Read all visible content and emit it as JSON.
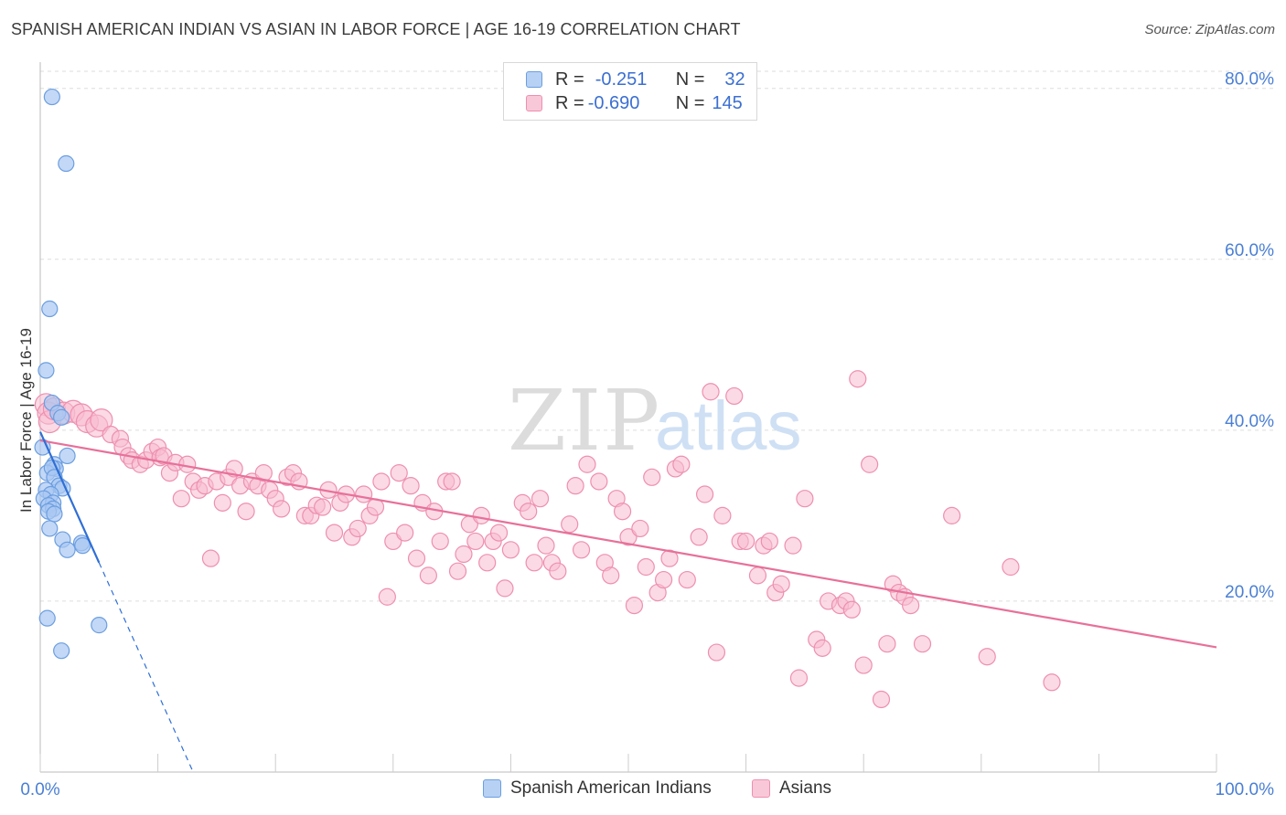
{
  "title": "SPANISH AMERICAN INDIAN VS ASIAN IN LABOR FORCE | AGE 16-19 CORRELATION CHART",
  "source": "Source: ZipAtlas.com",
  "watermark": {
    "zip": "ZIP",
    "atlas": "atlas"
  },
  "legend": {
    "row1": {
      "r_label": "R =",
      "r_value": "-0.251",
      "n_label": "N =",
      "n_value": "32"
    },
    "row2": {
      "r_label": "R =",
      "r_value": "-0.690",
      "n_label": "N =",
      "n_value": "145"
    }
  },
  "bottom_legend": {
    "series1": "Spanish American Indians",
    "series2": "Asians"
  },
  "colors": {
    "blue_fill": "#a9c8f2",
    "blue_stroke": "#6b9ee0",
    "blue_line": "#2f6fd6",
    "pink_fill": "#f7bcd0",
    "pink_stroke": "#ee8fb0",
    "pink_line": "#e8709a",
    "axis_text": "#4a7fd4",
    "grid": "#dddddd"
  },
  "chart_data": {
    "type": "scatter",
    "title": "SPANISH AMERICAN INDIAN VS ASIAN IN LABOR FORCE | AGE 16-19 CORRELATION CHART",
    "xlabel": "",
    "ylabel": "In Labor Force | Age 16-19",
    "xlim": [
      0,
      100
    ],
    "ylim": [
      0,
      82
    ],
    "x_tick_labels": [
      "0.0%",
      "100.0%"
    ],
    "y_ticks": [
      20,
      40,
      60,
      80
    ],
    "y_tick_labels": [
      "20.0%",
      "40.0%",
      "60.0%",
      "80.0%"
    ],
    "grid": true,
    "legend_position": "top-center",
    "series": [
      {
        "name": "Spanish American Indians",
        "r": -0.251,
        "n": 32,
        "trend": {
          "x0": 0,
          "y0": 39.8,
          "x1": 5.0,
          "y1": 24.5,
          "dashed_to_x": 13.0,
          "dashed_to_y": 0
        },
        "points": [
          [
            1.0,
            79.0
          ],
          [
            2.2,
            71.2
          ],
          [
            0.8,
            54.2
          ],
          [
            0.5,
            47.0
          ],
          [
            1.0,
            43.2
          ],
          [
            1.5,
            42.0
          ],
          [
            1.8,
            41.5
          ],
          [
            0.2,
            38.0
          ],
          [
            2.3,
            37.0
          ],
          [
            1.2,
            36.0
          ],
          [
            1.3,
            35.5
          ],
          [
            0.6,
            35.0
          ],
          [
            1.0,
            35.6
          ],
          [
            1.2,
            34.5
          ],
          [
            1.6,
            33.5
          ],
          [
            0.5,
            33.0
          ],
          [
            1.9,
            33.2
          ],
          [
            0.9,
            32.5
          ],
          [
            0.3,
            32.0
          ],
          [
            1.1,
            31.5
          ],
          [
            0.7,
            31.2
          ],
          [
            1.1,
            30.8
          ],
          [
            0.7,
            30.5
          ],
          [
            1.2,
            30.2
          ],
          [
            0.8,
            28.5
          ],
          [
            1.9,
            27.2
          ],
          [
            2.3,
            26.0
          ],
          [
            3.5,
            26.8
          ],
          [
            3.6,
            26.5
          ],
          [
            0.6,
            18.0
          ],
          [
            5.0,
            17.2
          ],
          [
            1.8,
            14.2
          ]
        ]
      },
      {
        "name": "Asians",
        "r": -0.69,
        "n": 145,
        "trend": {
          "x0": 0,
          "y0": 38.8,
          "x1": 100,
          "y1": 14.6
        },
        "points": [
          [
            0.5,
            43.0
          ],
          [
            0.7,
            42.0
          ],
          [
            0.8,
            41.0
          ],
          [
            1.2,
            42.5
          ],
          [
            2.0,
            42.0
          ],
          [
            2.8,
            42.2
          ],
          [
            3.5,
            41.8
          ],
          [
            4.0,
            41.0
          ],
          [
            4.8,
            40.5
          ],
          [
            5.2,
            41.2
          ],
          [
            6.0,
            39.5
          ],
          [
            6.8,
            39.0
          ],
          [
            7.0,
            38.0
          ],
          [
            7.5,
            37.0
          ],
          [
            7.8,
            36.5
          ],
          [
            8.5,
            36.0
          ],
          [
            9.0,
            36.5
          ],
          [
            9.5,
            37.5
          ],
          [
            10.0,
            38.0
          ],
          [
            10.2,
            36.8
          ],
          [
            10.5,
            37.0
          ],
          [
            11.0,
            35.0
          ],
          [
            11.5,
            36.2
          ],
          [
            12.0,
            32.0
          ],
          [
            12.5,
            36.0
          ],
          [
            13.0,
            34.0
          ],
          [
            13.5,
            33.0
          ],
          [
            14.0,
            33.5
          ],
          [
            14.5,
            25.0
          ],
          [
            15.0,
            34.0
          ],
          [
            15.5,
            31.5
          ],
          [
            16.0,
            34.5
          ],
          [
            16.5,
            35.5
          ],
          [
            17.0,
            33.5
          ],
          [
            17.5,
            30.5
          ],
          [
            18.0,
            34.0
          ],
          [
            18.5,
            33.5
          ],
          [
            19.0,
            35.0
          ],
          [
            19.5,
            33.0
          ],
          [
            20.0,
            32.0
          ],
          [
            20.5,
            30.8
          ],
          [
            21.0,
            34.5
          ],
          [
            21.5,
            35.0
          ],
          [
            22.0,
            34.0
          ],
          [
            22.5,
            30.0
          ],
          [
            23.0,
            30.0
          ],
          [
            23.5,
            31.2
          ],
          [
            24.0,
            31.0
          ],
          [
            24.5,
            33.0
          ],
          [
            25.0,
            28.0
          ],
          [
            25.5,
            31.5
          ],
          [
            26.0,
            32.5
          ],
          [
            26.5,
            27.5
          ],
          [
            27.0,
            28.5
          ],
          [
            27.5,
            32.5
          ],
          [
            28.0,
            30.0
          ],
          [
            28.5,
            31.0
          ],
          [
            29.0,
            34.0
          ],
          [
            29.5,
            20.5
          ],
          [
            30.0,
            27.0
          ],
          [
            30.5,
            35.0
          ],
          [
            31.0,
            28.0
          ],
          [
            31.5,
            33.5
          ],
          [
            32.0,
            25.0
          ],
          [
            32.5,
            31.5
          ],
          [
            33.0,
            23.0
          ],
          [
            33.5,
            30.5
          ],
          [
            34.0,
            27.0
          ],
          [
            34.5,
            34.0
          ],
          [
            35.0,
            34.0
          ],
          [
            35.5,
            23.5
          ],
          [
            36.0,
            25.5
          ],
          [
            36.5,
            29.0
          ],
          [
            37.0,
            27.0
          ],
          [
            37.5,
            30.0
          ],
          [
            38.0,
            24.5
          ],
          [
            38.5,
            27.0
          ],
          [
            39.0,
            28.0
          ],
          [
            39.5,
            21.5
          ],
          [
            40.0,
            26.0
          ],
          [
            41.0,
            31.5
          ],
          [
            41.5,
            30.5
          ],
          [
            42.0,
            24.5
          ],
          [
            42.5,
            32.0
          ],
          [
            43.0,
            26.5
          ],
          [
            43.5,
            24.5
          ],
          [
            44.0,
            23.5
          ],
          [
            45.0,
            29.0
          ],
          [
            45.5,
            33.5
          ],
          [
            46.0,
            26.0
          ],
          [
            46.5,
            36.0
          ],
          [
            47.5,
            34.0
          ],
          [
            48.0,
            24.5
          ],
          [
            48.5,
            23.0
          ],
          [
            49.0,
            32.0
          ],
          [
            49.5,
            30.5
          ],
          [
            50.0,
            27.5
          ],
          [
            50.5,
            19.5
          ],
          [
            51.0,
            28.5
          ],
          [
            51.5,
            24.0
          ],
          [
            52.0,
            34.5
          ],
          [
            52.5,
            21.0
          ],
          [
            53.0,
            22.5
          ],
          [
            53.5,
            25.0
          ],
          [
            54.0,
            35.5
          ],
          [
            54.5,
            36.0
          ],
          [
            55.0,
            22.5
          ],
          [
            56.0,
            27.5
          ],
          [
            56.5,
            32.5
          ],
          [
            57.0,
            44.5
          ],
          [
            57.5,
            14.0
          ],
          [
            58.0,
            30.0
          ],
          [
            59.0,
            44.0
          ],
          [
            59.5,
            27.0
          ],
          [
            60.0,
            27.0
          ],
          [
            61.0,
            23.0
          ],
          [
            61.5,
            26.5
          ],
          [
            62.0,
            27.0
          ],
          [
            62.5,
            21.0
          ],
          [
            63.0,
            22.0
          ],
          [
            64.0,
            26.5
          ],
          [
            64.5,
            11.0
          ],
          [
            65.0,
            32.0
          ],
          [
            66.0,
            15.5
          ],
          [
            66.5,
            14.5
          ],
          [
            67.0,
            20.0
          ],
          [
            68.0,
            19.5
          ],
          [
            68.5,
            20.0
          ],
          [
            69.0,
            19.0
          ],
          [
            69.5,
            46.0
          ],
          [
            70.0,
            12.5
          ],
          [
            70.5,
            36.0
          ],
          [
            71.5,
            8.5
          ],
          [
            72.0,
            15.0
          ],
          [
            72.5,
            22.0
          ],
          [
            73.0,
            21.0
          ],
          [
            73.5,
            20.5
          ],
          [
            74.0,
            19.5
          ],
          [
            75.0,
            15.0
          ],
          [
            77.5,
            30.0
          ],
          [
            80.5,
            13.5
          ],
          [
            82.5,
            24.0
          ],
          [
            86.0,
            10.5
          ]
        ]
      }
    ]
  }
}
